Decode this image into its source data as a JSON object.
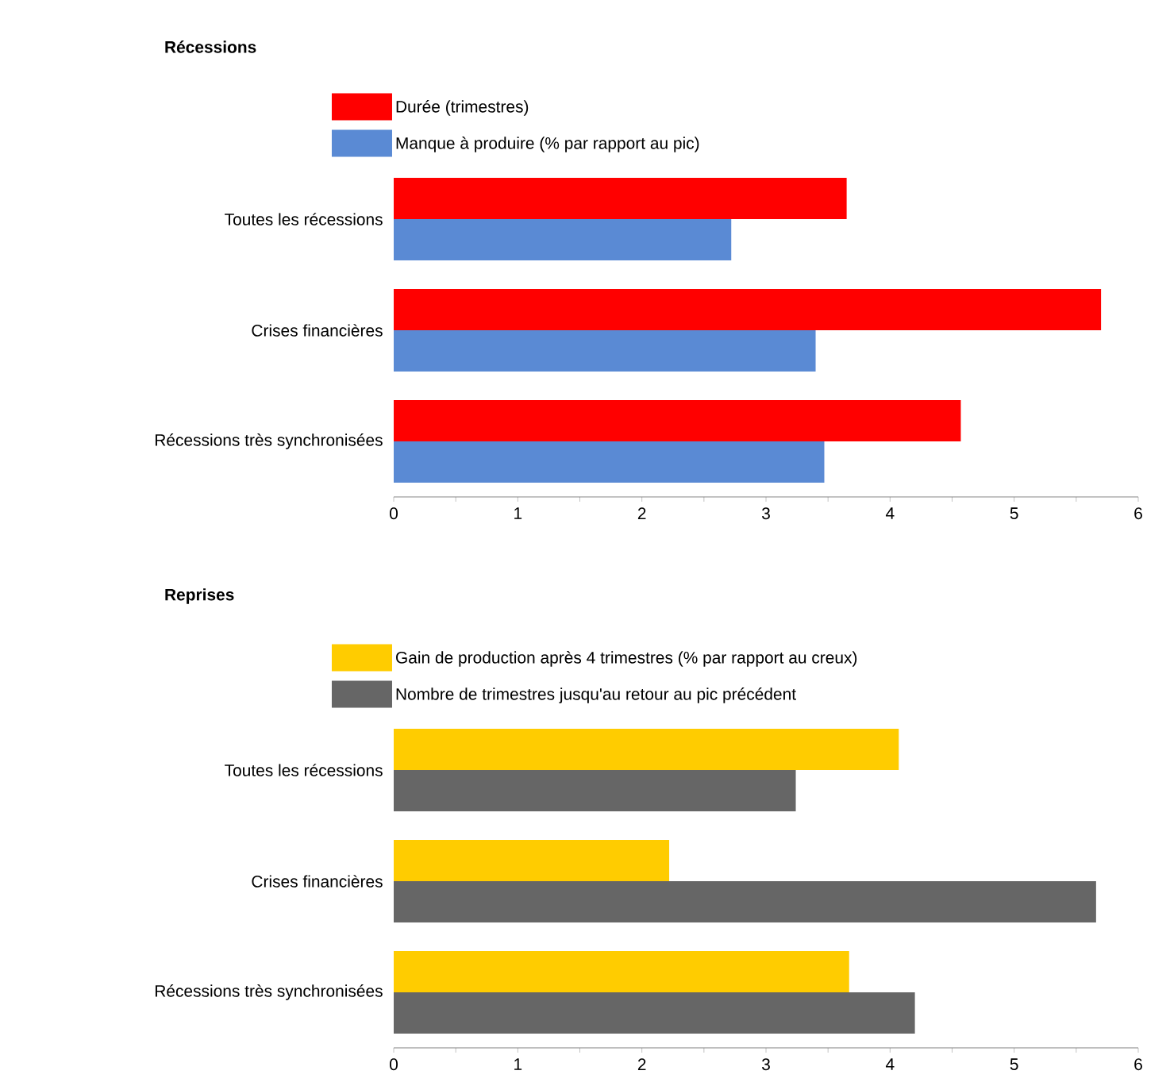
{
  "chart_data": [
    {
      "type": "bar",
      "orientation": "horizontal",
      "title": "Récessions",
      "categories": [
        "Toutes les récessions",
        "Crises financières",
        "Récessions très synchronisées"
      ],
      "series": [
        {
          "name": "Durée (trimestres)",
          "color": "#ff0000",
          "values": [
            3.65,
            5.7,
            4.57
          ]
        },
        {
          "name": "Manque à produire (% par rapport au pic)",
          "color": "#5a8ad4",
          "values": [
            2.72,
            3.4,
            3.47
          ]
        }
      ],
      "xlim": [
        0,
        6
      ],
      "xticks": [
        0,
        {
          "value": 0.5,
          "label": null
        },
        1,
        {
          "value": 1.5,
          "label": null
        },
        2,
        {
          "value": 2.5,
          "label": null
        },
        3,
        {
          "value": 3.5,
          "label": null
        },
        4,
        {
          "value": 4.5,
          "label": null
        },
        5,
        {
          "value": 5.5,
          "label": null
        },
        6
      ],
      "legend": "top left",
      "grid": false
    },
    {
      "type": "bar",
      "orientation": "horizontal",
      "title": "Reprises",
      "categories": [
        "Toutes les récessions",
        "Crises financières",
        "Récessions très synchronisées"
      ],
      "series": [
        {
          "name": "Gain de production après 4 trimestres (% par rapport au creux)",
          "color": "#ffcc00",
          "values": [
            4.07,
            2.22,
            3.67
          ]
        },
        {
          "name": "Nombre de trimestres jusqu'au retour au pic précédent",
          "color": "#666666",
          "values": [
            3.24,
            5.66,
            4.2
          ]
        }
      ],
      "xlim": [
        0,
        6
      ],
      "xticks": [
        0,
        {
          "value": 0.5,
          "label": null
        },
        1,
        {
          "value": 1.5,
          "label": null
        },
        2,
        {
          "value": 2.5,
          "label": null
        },
        3,
        {
          "value": 3.5,
          "label": null
        },
        4,
        {
          "value": 4.5,
          "label": null
        },
        5,
        {
          "value": 5.5,
          "label": null
        },
        6
      ],
      "legend": "top left",
      "grid": false
    }
  ]
}
